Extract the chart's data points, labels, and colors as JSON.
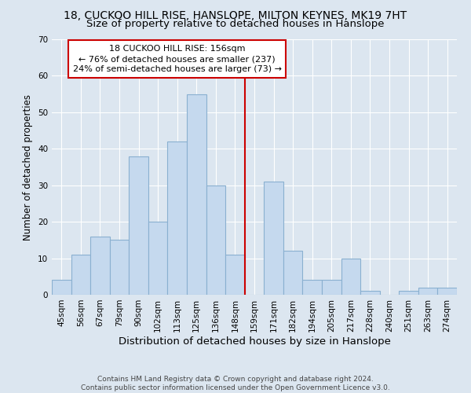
{
  "title": "18, CUCKOO HILL RISE, HANSLOPE, MILTON KEYNES, MK19 7HT",
  "subtitle": "Size of property relative to detached houses in Hanslope",
  "xlabel": "Distribution of detached houses by size in Hanslope",
  "ylabel": "Number of detached properties",
  "categories": [
    "45sqm",
    "56sqm",
    "67sqm",
    "79sqm",
    "90sqm",
    "102sqm",
    "113sqm",
    "125sqm",
    "136sqm",
    "148sqm",
    "159sqm",
    "171sqm",
    "182sqm",
    "194sqm",
    "205sqm",
    "217sqm",
    "228sqm",
    "240sqm",
    "251sqm",
    "263sqm",
    "274sqm"
  ],
  "values": [
    4,
    11,
    16,
    15,
    38,
    20,
    42,
    55,
    30,
    11,
    0,
    31,
    12,
    4,
    4,
    10,
    1,
    0,
    1,
    2,
    2
  ],
  "bar_color": "#c5d9ee",
  "bar_edge_color": "#8ab0d0",
  "background_color": "#dce6f0",
  "grid_color": "#ffffff",
  "vline_x": 9.5,
  "vline_color": "#cc0000",
  "annotation_line1": "18 CUCKOO HILL RISE: 156sqm",
  "annotation_line2": "← 76% of detached houses are smaller (237)",
  "annotation_line3": "24% of semi-detached houses are larger (73) →",
  "annotation_box_color": "#ffffff",
  "annotation_box_edge_color": "#cc0000",
  "ylim": [
    0,
    70
  ],
  "yticks": [
    0,
    10,
    20,
    30,
    40,
    50,
    60,
    70
  ],
  "footer": "Contains HM Land Registry data © Crown copyright and database right 2024.\nContains public sector information licensed under the Open Government Licence v3.0.",
  "title_fontsize": 10,
  "subtitle_fontsize": 9.5,
  "xlabel_fontsize": 9.5,
  "ylabel_fontsize": 8.5,
  "tick_fontsize": 7.5,
  "annotation_fontsize": 8,
  "footer_fontsize": 6.5
}
